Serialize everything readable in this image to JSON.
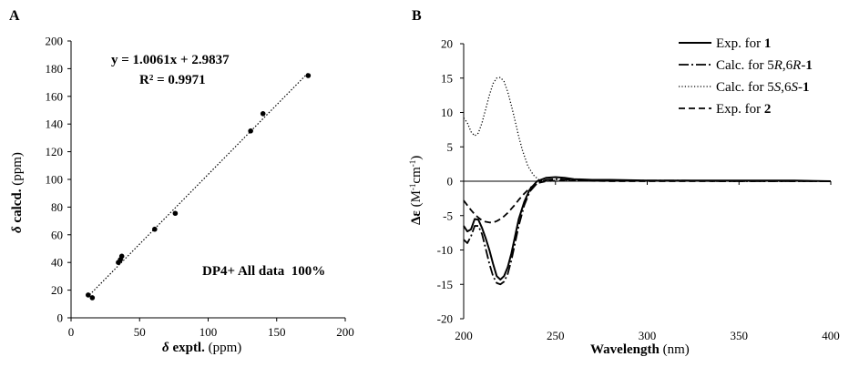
{
  "chart_data": [
    {
      "panel_label": "A",
      "type": "scatter",
      "xlabel": {
        "symbol": "δ",
        "text": " exptl.",
        "unit": " (ppm)"
      },
      "ylabel": {
        "symbol": "δ",
        "text": " calcd.",
        "unit": " (ppm)"
      },
      "xlim": [
        0,
        200
      ],
      "ylim": [
        0,
        200
      ],
      "xticks": [
        "0",
        "50",
        "100",
        "150",
        "200"
      ],
      "yticks": [
        "0",
        "20",
        "40",
        "60",
        "80",
        "100",
        "120",
        "140",
        "160",
        "180",
        "200"
      ],
      "points": [
        {
          "x": 12.5,
          "y": 16.5
        },
        {
          "x": 15.5,
          "y": 14.5
        },
        {
          "x": 34.5,
          "y": 40.0
        },
        {
          "x": 36.0,
          "y": 42.0
        },
        {
          "x": 37.0,
          "y": 44.5
        },
        {
          "x": 61.0,
          "y": 64.0
        },
        {
          "x": 76.0,
          "y": 75.5
        },
        {
          "x": 131.0,
          "y": 135.0
        },
        {
          "x": 140.0,
          "y": 147.5
        },
        {
          "x": 173.0,
          "y": 175.0
        }
      ],
      "trendline": {
        "slope": 1.0061,
        "intercept": 2.9837,
        "x_range": [
          12,
          173
        ],
        "style": "dotted"
      },
      "annotations": {
        "equation": "y = 1.0061x + 2.9837",
        "r2": "R² = 0.9971",
        "dp4": "DP4+ All data  100%"
      },
      "grid": false
    },
    {
      "panel_label": "B",
      "type": "line",
      "xlabel": {
        "bold": "Wavelength",
        "unit": " (nm)"
      },
      "ylabel": {
        "symbol": "Δε",
        "unit": " (M",
        "sup1": "-1",
        "mid": "cm",
        "sup2": "-1",
        "end": ")"
      },
      "xlim": [
        200,
        400
      ],
      "ylim": [
        -20,
        20
      ],
      "xticks": [
        "200",
        "250",
        "300",
        "350",
        "400"
      ],
      "yticks": [
        "20",
        "15",
        "10",
        "5",
        "0",
        "-5",
        "-10",
        "-15",
        "-20"
      ],
      "grid": false,
      "legend_position": "top-right",
      "series": [
        {
          "name": "Exp. for ",
          "name_bold": "1",
          "style": "solid",
          "x": [
            200,
            202,
            204,
            206,
            208,
            210,
            212,
            214,
            216,
            218,
            220,
            222,
            224,
            226,
            228,
            230,
            233,
            236,
            240,
            245,
            250,
            255,
            260,
            270,
            280,
            300,
            320,
            340,
            360,
            380,
            400
          ],
          "y": [
            -6.5,
            -7.3,
            -7.0,
            -5.5,
            -5.6,
            -6.8,
            -8.3,
            -10.0,
            -12.0,
            -13.8,
            -14.3,
            -13.8,
            -12.5,
            -10.5,
            -8.0,
            -5.5,
            -3.0,
            -1.2,
            0.0,
            0.5,
            0.6,
            0.5,
            0.3,
            0.2,
            0.2,
            0.1,
            0.1,
            0.1,
            0.1,
            0.1,
            0.0
          ]
        },
        {
          "name": "Calc. for 5",
          "name_it1": "R",
          "name_mid": ",6",
          "name_it2": "R",
          "name_dash": "-",
          "name_bold": "1",
          "style": "dashdot",
          "x": [
            200,
            202,
            204,
            206,
            208,
            210,
            212,
            214,
            216,
            218,
            220,
            222,
            224,
            226,
            228,
            230,
            233,
            236,
            240,
            245,
            250,
            260,
            280,
            300,
            320,
            340,
            360,
            380,
            400
          ],
          "y": [
            -8.5,
            -9.0,
            -8.0,
            -6.5,
            -6.5,
            -7.7,
            -9.8,
            -12.0,
            -13.8,
            -14.8,
            -15.0,
            -14.6,
            -13.5,
            -11.5,
            -9.0,
            -6.5,
            -3.5,
            -1.5,
            -0.3,
            0.2,
            0.3,
            0.2,
            0.1,
            0.1,
            0.1,
            0.0,
            0.0,
            0.0,
            0.0
          ]
        },
        {
          "name": "Calc. for 5",
          "name_it1": "S",
          "name_mid": ",6",
          "name_it2": "S",
          "name_dash": "-",
          "name_bold": "1",
          "style": "dotted",
          "x": [
            200,
            202,
            204,
            206,
            208,
            210,
            212,
            214,
            216,
            218,
            220,
            222,
            224,
            226,
            228,
            230,
            232,
            235,
            238,
            241,
            245,
            250,
            260,
            280,
            300,
            320,
            340,
            360,
            380,
            400
          ],
          "y": [
            9.2,
            8.5,
            7.2,
            6.6,
            7.0,
            8.5,
            10.5,
            12.5,
            14.2,
            15.0,
            15.1,
            14.5,
            13.0,
            11.0,
            8.8,
            6.5,
            4.5,
            2.2,
            0.9,
            0.2,
            0.0,
            0.0,
            0.1,
            0.1,
            0.1,
            0.1,
            0.1,
            0.1,
            0.1,
            0.0
          ]
        },
        {
          "name": "Exp. for ",
          "name_bold": "2",
          "style": "dashed",
          "x": [
            200,
            202,
            204,
            206,
            208,
            210,
            212,
            214,
            216,
            218,
            220,
            222,
            224,
            226,
            228,
            230,
            233,
            236,
            240,
            245,
            250,
            260,
            280,
            300,
            320,
            340,
            360,
            380,
            400
          ],
          "y": [
            -2.8,
            -3.5,
            -4.2,
            -4.8,
            -5.3,
            -5.7,
            -5.9,
            -6.0,
            -6.0,
            -5.8,
            -5.5,
            -5.1,
            -4.6,
            -4.0,
            -3.4,
            -2.7,
            -1.8,
            -1.0,
            -0.3,
            0.0,
            0.1,
            0.1,
            0.0,
            0.0,
            0.0,
            0.0,
            0.0,
            0.0,
            0.0
          ]
        }
      ]
    }
  ]
}
